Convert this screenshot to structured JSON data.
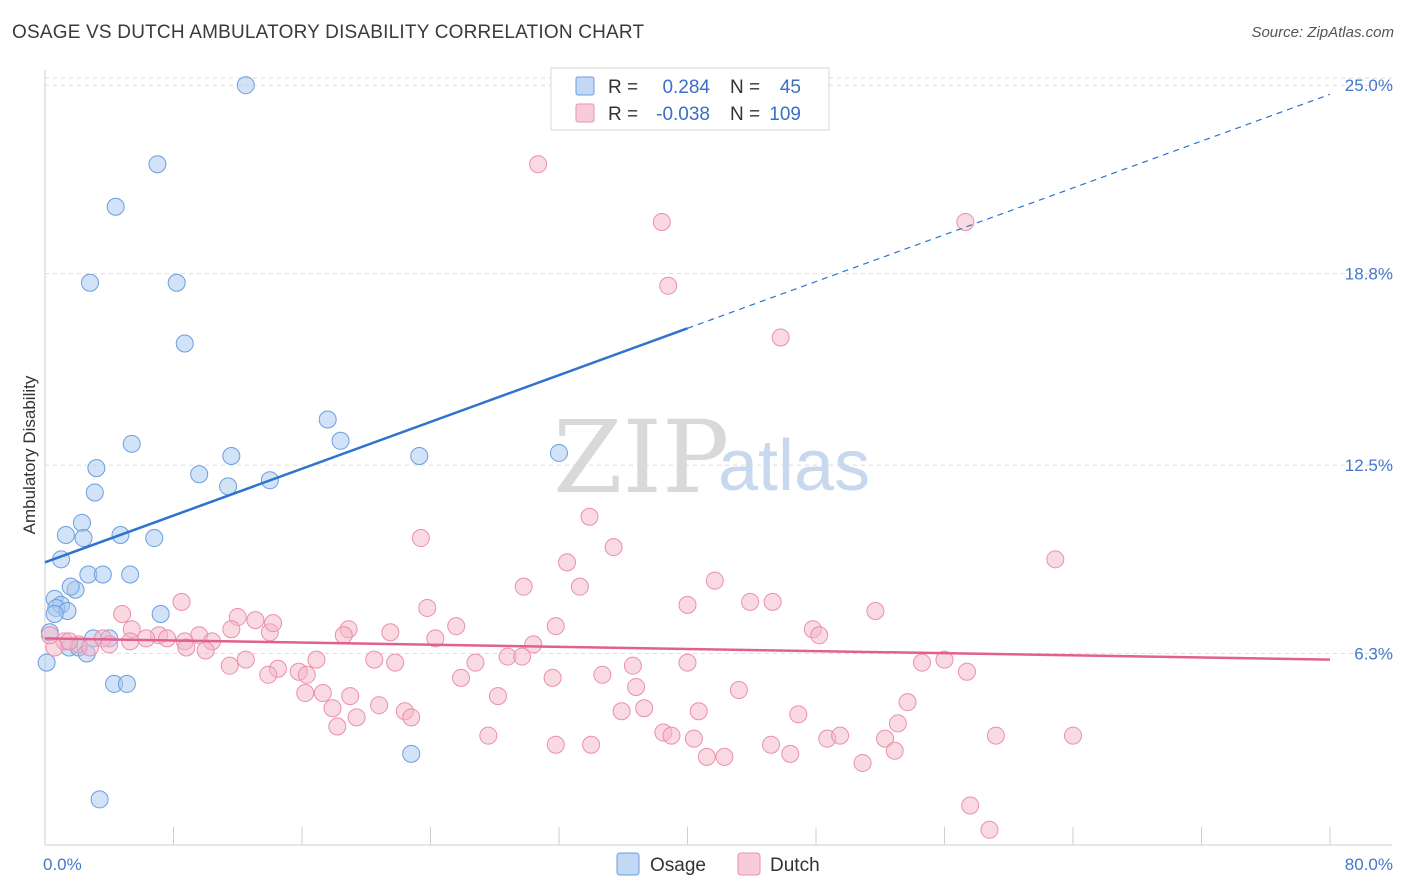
{
  "header": {
    "title": "OSAGE VS DUTCH AMBULATORY DISABILITY CORRELATION CHART",
    "source": "Source: ZipAtlas.com"
  },
  "watermark": {
    "zip": "ZIP",
    "atlas": "atlas"
  },
  "legend_top": {
    "rows": [
      {
        "r_label": "R =",
        "r_value": "0.284",
        "n_label": "N =",
        "n_value": "45",
        "color": "#a8c8f0"
      },
      {
        "r_label": "R =",
        "r_value": "-0.038",
        "n_label": "N =",
        "n_value": "109",
        "color": "#f4b6c8"
      }
    ]
  },
  "legend_bottom": {
    "items": [
      {
        "label": "Osage",
        "color": "#a8c8f0"
      },
      {
        "label": "Dutch",
        "color": "#f4b6c8"
      }
    ]
  },
  "chart_data": {
    "type": "scatter",
    "title": "OSAGE VS DUTCH AMBULATORY DISABILITY CORRELATION CHART",
    "xlabel": "",
    "ylabel": "Ambulatory Disability",
    "xlim": [
      0,
      80
    ],
    "ylim": [
      0,
      25.5
    ],
    "x_tick_labels": [
      {
        "value": 0,
        "label": "0.0%"
      },
      {
        "value": 80,
        "label": "80.0%"
      }
    ],
    "y_ticks": [
      {
        "value": 6.3,
        "label": "6.3%"
      },
      {
        "value": 12.5,
        "label": "12.5%"
      },
      {
        "value": 18.8,
        "label": "18.8%"
      },
      {
        "value": 25.0,
        "label": "25.0%"
      }
    ],
    "series": [
      {
        "name": "Osage",
        "color": "#a8c8f0",
        "stroke": "#6a9ee0",
        "line_color": "#2f72d0",
        "trend": {
          "x0": 0,
          "y0": 9.3,
          "x1": 40,
          "y1": 17.0,
          "dash_to_x": 80,
          "dash_to_y": 24.7
        },
        "points": [
          [
            12.5,
            25.0
          ],
          [
            7.0,
            22.4
          ],
          [
            4.4,
            21.0
          ],
          [
            2.8,
            18.5
          ],
          [
            8.2,
            18.5
          ],
          [
            8.7,
            16.5
          ],
          [
            17.6,
            14.0
          ],
          [
            18.4,
            13.3
          ],
          [
            5.4,
            13.2
          ],
          [
            11.6,
            12.8
          ],
          [
            23.3,
            12.8
          ],
          [
            32.0,
            12.9
          ],
          [
            3.2,
            12.4
          ],
          [
            9.6,
            12.2
          ],
          [
            14.0,
            12.0
          ],
          [
            11.4,
            11.8
          ],
          [
            3.1,
            11.6
          ],
          [
            2.3,
            10.6
          ],
          [
            1.3,
            10.2
          ],
          [
            2.4,
            10.1
          ],
          [
            4.7,
            10.2
          ],
          [
            6.8,
            10.1
          ],
          [
            1.0,
            9.4
          ],
          [
            2.7,
            8.9
          ],
          [
            3.6,
            8.9
          ],
          [
            5.3,
            8.9
          ],
          [
            1.9,
            8.4
          ],
          [
            1.6,
            8.5
          ],
          [
            0.6,
            8.1
          ],
          [
            1.0,
            7.9
          ],
          [
            0.7,
            7.8
          ],
          [
            1.4,
            7.7
          ],
          [
            0.6,
            7.6
          ],
          [
            7.2,
            7.6
          ],
          [
            0.3,
            7.0
          ],
          [
            3.0,
            6.8
          ],
          [
            4.0,
            6.8
          ],
          [
            1.5,
            6.5
          ],
          [
            2.1,
            6.5
          ],
          [
            2.6,
            6.3
          ],
          [
            0.1,
            6.0
          ],
          [
            4.3,
            5.3
          ],
          [
            5.1,
            5.3
          ],
          [
            22.8,
            3.0
          ],
          [
            3.4,
            1.5
          ]
        ]
      },
      {
        "name": "Dutch",
        "color": "#f4b6c8",
        "stroke": "#ec8fab",
        "line_color": "#e0608f",
        "trend": {
          "x0": 0,
          "y0": 6.8,
          "x1": 80,
          "y1": 6.1
        },
        "points": [
          [
            30.7,
            22.4
          ],
          [
            38.4,
            20.5
          ],
          [
            57.3,
            20.5
          ],
          [
            38.8,
            18.4
          ],
          [
            45.8,
            16.7
          ],
          [
            33.9,
            10.8
          ],
          [
            23.4,
            10.1
          ],
          [
            35.4,
            9.8
          ],
          [
            32.5,
            9.3
          ],
          [
            62.9,
            9.4
          ],
          [
            41.7,
            8.7
          ],
          [
            29.8,
            8.5
          ],
          [
            33.3,
            8.5
          ],
          [
            8.5,
            8.0
          ],
          [
            40.0,
            7.9
          ],
          [
            43.9,
            8.0
          ],
          [
            45.3,
            8.0
          ],
          [
            23.8,
            7.8
          ],
          [
            51.7,
            7.7
          ],
          [
            4.8,
            7.6
          ],
          [
            12.0,
            7.5
          ],
          [
            13.1,
            7.4
          ],
          [
            11.6,
            7.1
          ],
          [
            14.0,
            7.0
          ],
          [
            18.9,
            7.1
          ],
          [
            25.6,
            7.2
          ],
          [
            31.8,
            7.2
          ],
          [
            47.8,
            7.1
          ],
          [
            21.5,
            7.0
          ],
          [
            48.2,
            6.9
          ],
          [
            18.6,
            6.9
          ],
          [
            7.1,
            6.9
          ],
          [
            3.6,
            6.8
          ],
          [
            5.4,
            7.1
          ],
          [
            6.3,
            6.8
          ],
          [
            7.6,
            6.8
          ],
          [
            9.6,
            6.9
          ],
          [
            10.4,
            6.7
          ],
          [
            8.7,
            6.7
          ],
          [
            5.3,
            6.7
          ],
          [
            2.1,
            6.6
          ],
          [
            1.2,
            6.7
          ],
          [
            0.6,
            6.5
          ],
          [
            4.0,
            6.6
          ],
          [
            24.3,
            6.8
          ],
          [
            30.4,
            6.6
          ],
          [
            8.8,
            6.5
          ],
          [
            10.0,
            6.4
          ],
          [
            28.8,
            6.2
          ],
          [
            29.7,
            6.2
          ],
          [
            12.5,
            6.1
          ],
          [
            16.9,
            6.1
          ],
          [
            20.5,
            6.1
          ],
          [
            21.8,
            6.0
          ],
          [
            26.8,
            6.0
          ],
          [
            36.6,
            5.9
          ],
          [
            40.0,
            6.0
          ],
          [
            54.6,
            6.0
          ],
          [
            56.0,
            6.1
          ],
          [
            11.5,
            5.9
          ],
          [
            57.4,
            5.7
          ],
          [
            14.5,
            5.8
          ],
          [
            15.8,
            5.7
          ],
          [
            13.9,
            5.6
          ],
          [
            16.3,
            5.6
          ],
          [
            25.9,
            5.5
          ],
          [
            31.6,
            5.5
          ],
          [
            34.7,
            5.6
          ],
          [
            36.8,
            5.2
          ],
          [
            43.2,
            5.1
          ],
          [
            16.2,
            5.0
          ],
          [
            17.3,
            5.0
          ],
          [
            19.0,
            4.9
          ],
          [
            28.2,
            4.9
          ],
          [
            53.7,
            4.7
          ],
          [
            17.9,
            4.5
          ],
          [
            20.8,
            4.6
          ],
          [
            22.4,
            4.4
          ],
          [
            37.3,
            4.5
          ],
          [
            22.8,
            4.2
          ],
          [
            40.7,
            4.4
          ],
          [
            35.9,
            4.4
          ],
          [
            19.4,
            4.2
          ],
          [
            46.9,
            4.3
          ],
          [
            53.1,
            4.0
          ],
          [
            18.2,
            3.9
          ],
          [
            38.5,
            3.7
          ],
          [
            40.4,
            3.5
          ],
          [
            48.7,
            3.5
          ],
          [
            52.3,
            3.5
          ],
          [
            39.0,
            3.6
          ],
          [
            49.5,
            3.6
          ],
          [
            59.2,
            3.6
          ],
          [
            64.0,
            3.6
          ],
          [
            34.0,
            3.3
          ],
          [
            45.2,
            3.3
          ],
          [
            31.8,
            3.3
          ],
          [
            42.3,
            2.9
          ],
          [
            41.2,
            2.9
          ],
          [
            46.4,
            3.0
          ],
          [
            52.9,
            3.1
          ],
          [
            50.9,
            2.7
          ],
          [
            57.6,
            1.3
          ],
          [
            58.8,
            0.5
          ],
          [
            27.6,
            3.6
          ],
          [
            2.8,
            6.5
          ],
          [
            1.5,
            6.7
          ],
          [
            0.3,
            6.9
          ],
          [
            14.2,
            7.3
          ]
        ]
      }
    ]
  }
}
